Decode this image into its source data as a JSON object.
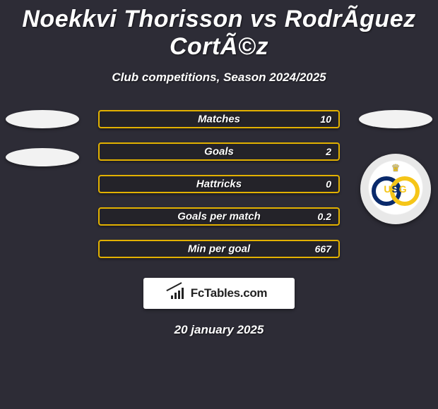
{
  "title": "Noekkvi Thorisson vs RodrÃ­guez CortÃ©z",
  "subtitle": "Club competitions, Season 2024/2025",
  "date": "20 january 2025",
  "logo_text": "FcTables.com",
  "colors": {
    "background": "#2d2c36",
    "bar_border": "#e2b100",
    "bar_bg": "#242329",
    "pill_bg": "#f2f2f2",
    "badge_ring_blue": "#0a2a6b",
    "badge_ring_yellow": "#f5c518",
    "text": "#ffffff"
  },
  "stats": [
    {
      "label": "Matches",
      "value_right": "10"
    },
    {
      "label": "Goals",
      "value_right": "2"
    },
    {
      "label": "Hattricks",
      "value_right": "0"
    },
    {
      "label": "Goals per match",
      "value_right": "0.2"
    },
    {
      "label": "Min per goal",
      "value_right": "667"
    }
  ],
  "badge": {
    "letters": "USG"
  }
}
